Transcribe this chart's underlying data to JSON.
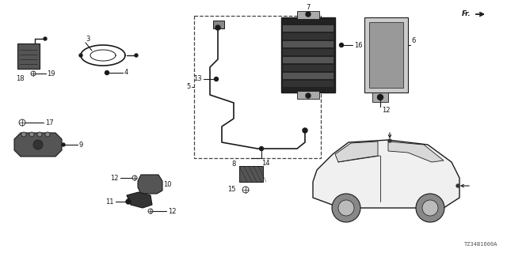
{
  "background_color": "#ffffff",
  "line_color": "#1a1a1a",
  "diagram_code": "TZ34B1600A",
  "figsize": [
    6.4,
    3.2
  ],
  "dpi": 100,
  "fs": 6.0,
  "fs_tiny": 5.0
}
